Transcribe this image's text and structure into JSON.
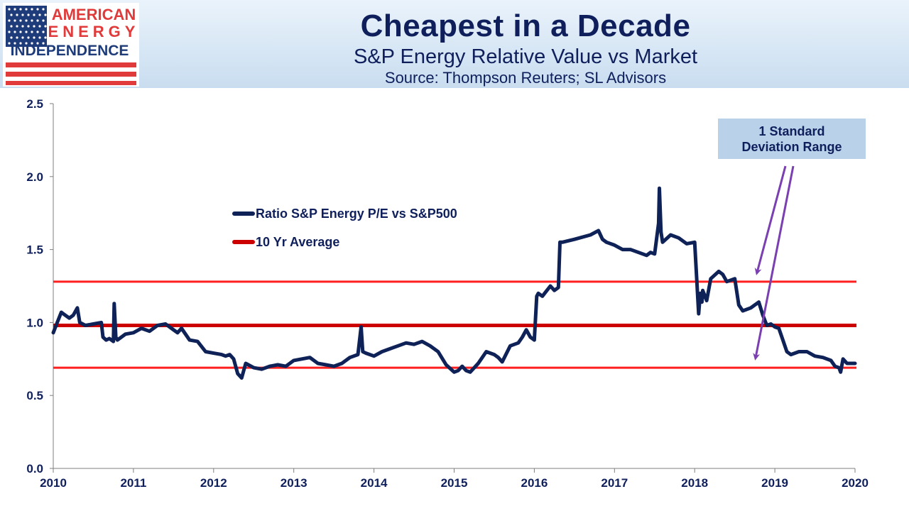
{
  "logo": {
    "line1": "AMERICAN",
    "line2": "ENERGY",
    "line3": "INDEPENDENCE",
    "flag_blue": "#1f3c7a",
    "flag_red": "#e03a3a"
  },
  "header": {
    "title": "Cheapest in a Decade",
    "subtitle": "S&P Energy Relative Value vs Market",
    "source": "Source: Thompson Reuters; SL Advisors"
  },
  "callout": {
    "line1": "1 Standard",
    "line2": "Deviation Range"
  },
  "colors": {
    "series": "#0f2258",
    "average": "#cc0000",
    "bands": "#ff1f1f",
    "arrow": "#7a3fb0",
    "axis_text": "#0f1f5c"
  },
  "chart_data": {
    "type": "line",
    "xlim": [
      2010,
      2020
    ],
    "ylim": [
      0,
      2.5
    ],
    "x_ticks": [
      "2010",
      "2011",
      "2012",
      "2013",
      "2014",
      "2015",
      "2016",
      "2017",
      "2018",
      "2019",
      "2020"
    ],
    "y_ticks": [
      "0.0",
      "0.5",
      "1.0",
      "1.5",
      "2.0",
      "2.5"
    ],
    "legend": [
      "Ratio S&P Energy P/E vs S&P500",
      "10 Yr Average"
    ],
    "series": [
      {
        "name": "Ratio S&P Energy P/E vs S&P500",
        "x": [
          2010.0,
          2010.05,
          2010.1,
          2010.15,
          2010.2,
          2010.25,
          2010.3,
          2010.33,
          2010.4,
          2010.5,
          2010.6,
          2010.62,
          2010.66,
          2010.7,
          2010.75,
          2010.76,
          2010.78,
          2010.8,
          2010.9,
          2011.0,
          2011.1,
          2011.2,
          2011.3,
          2011.4,
          2011.5,
          2011.55,
          2011.6,
          2011.7,
          2011.8,
          2011.9,
          2012.0,
          2012.1,
          2012.15,
          2012.2,
          2012.25,
          2012.3,
          2012.35,
          2012.4,
          2012.5,
          2012.6,
          2012.7,
          2012.8,
          2012.9,
          2013.0,
          2013.1,
          2013.2,
          2013.3,
          2013.4,
          2013.5,
          2013.6,
          2013.7,
          2013.8,
          2013.84,
          2013.86,
          2013.9,
          2014.0,
          2014.1,
          2014.2,
          2014.3,
          2014.4,
          2014.5,
          2014.6,
          2014.7,
          2014.8,
          2014.9,
          2015.0,
          2015.05,
          2015.1,
          2015.15,
          2015.2,
          2015.3,
          2015.4,
          2015.5,
          2015.55,
          2015.6,
          2015.7,
          2015.8,
          2015.85,
          2015.9,
          2015.95,
          2016.0,
          2016.03,
          2016.05,
          2016.1,
          2016.2,
          2016.25,
          2016.3,
          2016.32,
          2016.35,
          2016.5,
          2016.7,
          2016.8,
          2016.85,
          2016.9,
          2017.0,
          2017.1,
          2017.2,
          2017.3,
          2017.4,
          2017.45,
          2017.5,
          2017.55,
          2017.56,
          2017.58,
          2017.6,
          2017.7,
          2017.8,
          2017.9,
          2018.0,
          2018.05,
          2018.07,
          2018.09,
          2018.1,
          2018.15,
          2018.2,
          2018.3,
          2018.35,
          2018.4,
          2018.5,
          2018.55,
          2018.6,
          2018.7,
          2018.8,
          2018.85,
          2018.9,
          2018.95,
          2019.0,
          2019.05,
          2019.1,
          2019.15,
          2019.2,
          2019.3,
          2019.4,
          2019.5,
          2019.6,
          2019.7,
          2019.75,
          2019.8,
          2019.82,
          2019.85,
          2019.9,
          2020.0
        ],
        "y": [
          0.93,
          1.0,
          1.07,
          1.05,
          1.03,
          1.05,
          1.1,
          1.0,
          0.98,
          0.99,
          1.0,
          0.9,
          0.88,
          0.89,
          0.87,
          1.13,
          0.9,
          0.88,
          0.92,
          0.93,
          0.96,
          0.94,
          0.98,
          0.99,
          0.95,
          0.93,
          0.96,
          0.88,
          0.87,
          0.8,
          0.79,
          0.78,
          0.77,
          0.78,
          0.75,
          0.65,
          0.62,
          0.72,
          0.69,
          0.68,
          0.7,
          0.71,
          0.7,
          0.74,
          0.75,
          0.76,
          0.72,
          0.71,
          0.7,
          0.72,
          0.76,
          0.78,
          0.97,
          0.8,
          0.79,
          0.77,
          0.8,
          0.82,
          0.84,
          0.86,
          0.85,
          0.87,
          0.84,
          0.8,
          0.71,
          0.66,
          0.67,
          0.7,
          0.67,
          0.66,
          0.72,
          0.8,
          0.78,
          0.76,
          0.73,
          0.84,
          0.86,
          0.9,
          0.95,
          0.9,
          0.88,
          1.18,
          1.2,
          1.18,
          1.25,
          1.22,
          1.24,
          1.55,
          1.55,
          1.57,
          1.6,
          1.63,
          1.57,
          1.55,
          1.53,
          1.5,
          1.5,
          1.48,
          1.46,
          1.48,
          1.47,
          1.68,
          1.92,
          1.62,
          1.55,
          1.6,
          1.58,
          1.54,
          1.55,
          1.06,
          1.2,
          1.14,
          1.22,
          1.15,
          1.3,
          1.35,
          1.33,
          1.28,
          1.3,
          1.12,
          1.08,
          1.1,
          1.14,
          1.05,
          0.98,
          0.99,
          0.97,
          0.96,
          0.88,
          0.8,
          0.78,
          0.8,
          0.8,
          0.77,
          0.76,
          0.74,
          0.7,
          0.69,
          0.66,
          0.75,
          0.72,
          0.72
        ]
      }
    ],
    "reference_lines": [
      {
        "name": "10 Yr Average",
        "y": 0.98
      },
      {
        "y": 1.28
      },
      {
        "y": 0.69
      }
    ],
    "annotation": "1 Standard Deviation Range"
  }
}
